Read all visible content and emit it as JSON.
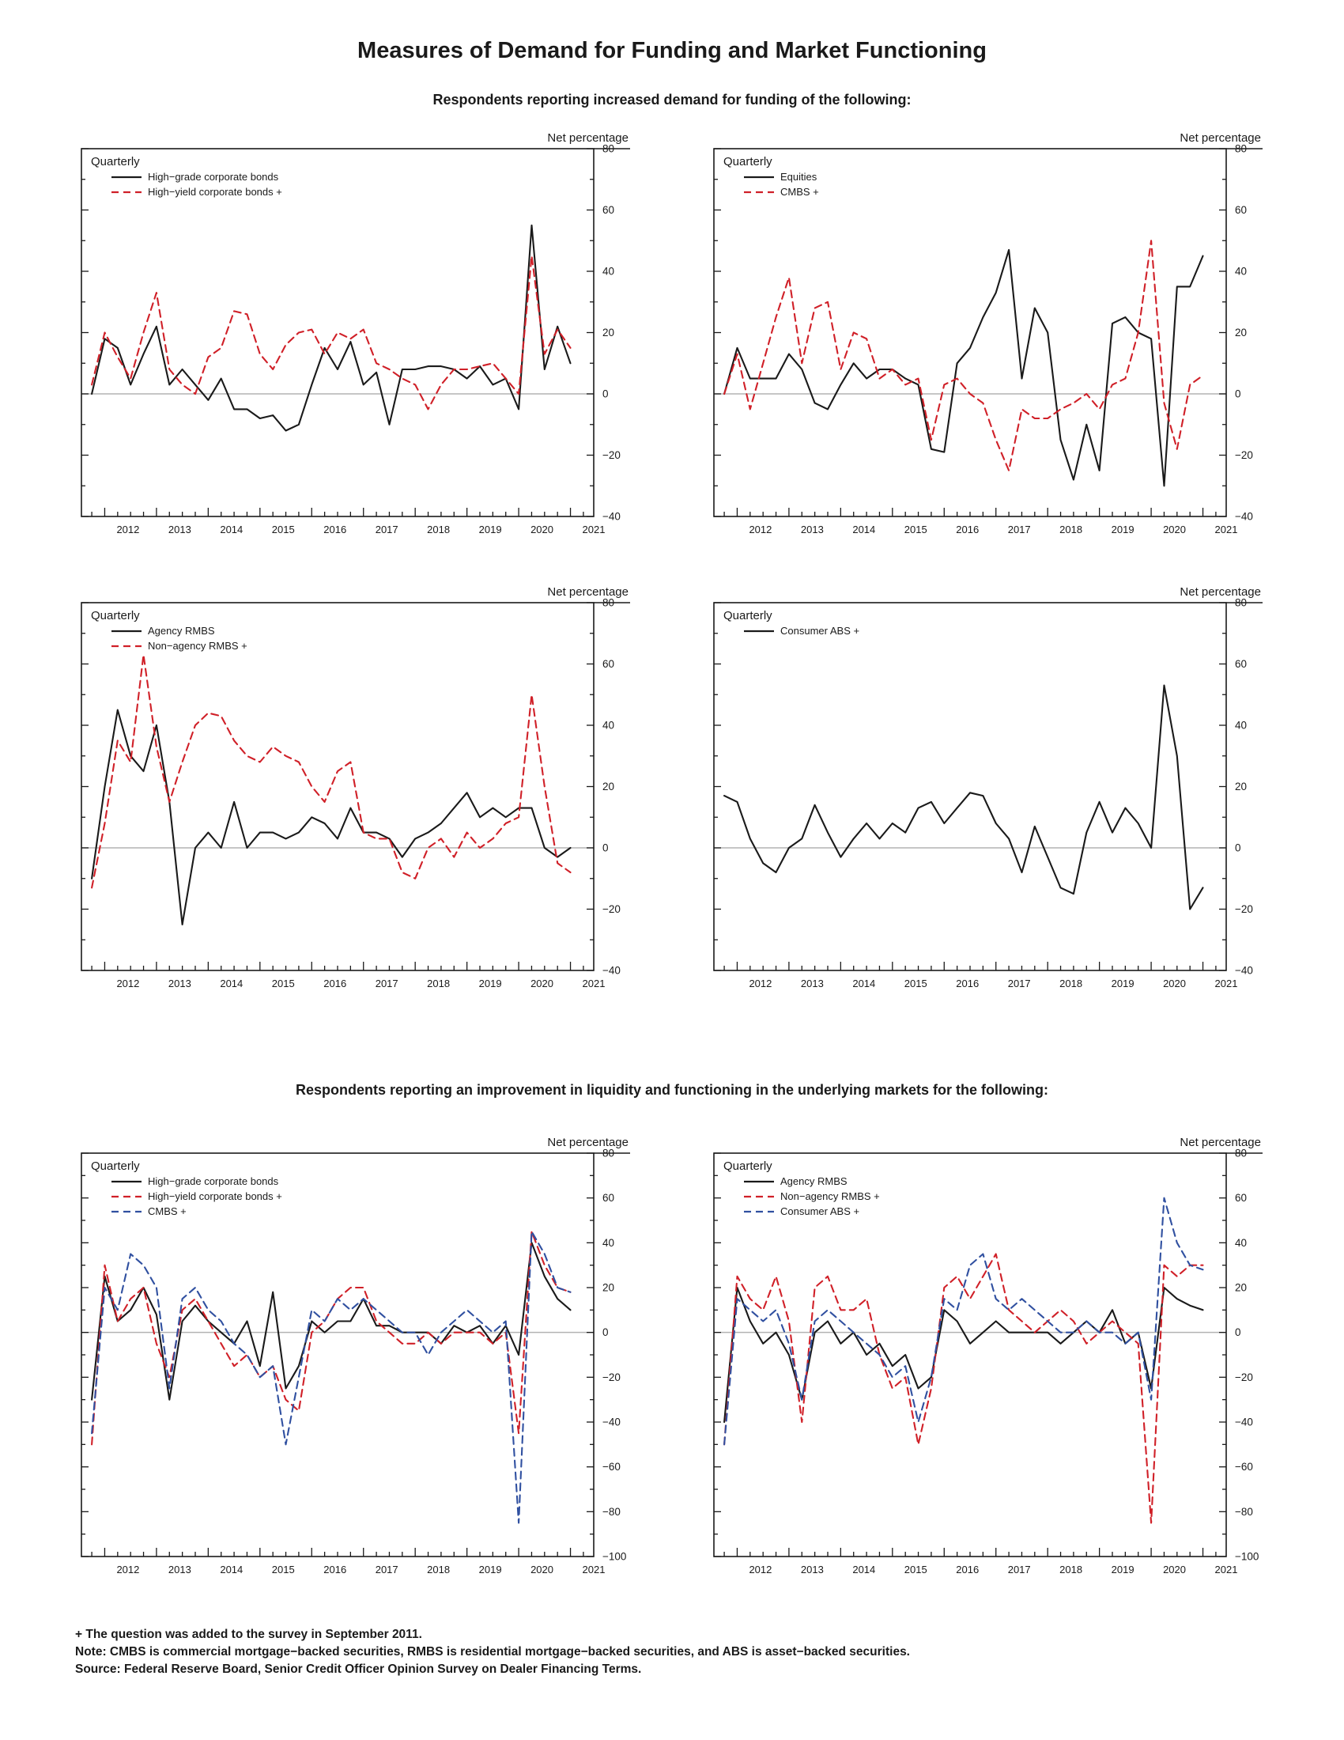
{
  "page": {
    "title": "Measures of Demand for Funding and Market Functioning",
    "section1_heading": "Respondents reporting increased demand for funding of the following:",
    "section2_heading": "Respondents reporting an improvement in liquidity and functioning in the underlying markets for the following:",
    "footnotes": [
      "+ The question was added to the survey in September 2011.",
      "Note: CMBS is commercial mortgage−backed securities, RMBS is residential mortgage−backed securities, and ABS is asset−backed securities.",
      "Source:  Federal Reserve Board, Senior Credit Officer Opinion Survey on Dealer Financing Terms."
    ],
    "colors": {
      "black": "#1a1a1a",
      "red": "#d02028",
      "blue": "#3050a0",
      "zero_line": "#b3b3b3"
    }
  },
  "chart_data": [
    {
      "type": "line",
      "corner_label": "Quarterly",
      "axis_label": "Net percentage",
      "ylim": [
        -40,
        80
      ],
      "ytick_step": 20,
      "ytick_minor": 10,
      "xlim": [
        2011.55,
        2021.45
      ],
      "x_start": 2011.75,
      "x_step": 0.25,
      "x_years": [
        2012,
        2013,
        2014,
        2015,
        2016,
        2017,
        2018,
        2019,
        2020,
        2021
      ],
      "series": [
        {
          "name": "High−grade corporate bonds",
          "color": "#1a1a1a",
          "style": "solid",
          "values": [
            0,
            18,
            15,
            3,
            13,
            22,
            3,
            8,
            3,
            -2,
            5,
            -5,
            -5,
            -8,
            -7,
            -12,
            -10,
            3,
            15,
            8,
            17,
            3,
            7,
            -10,
            8,
            8,
            9,
            9,
            8,
            5,
            9,
            3,
            5,
            -5,
            55,
            8,
            22,
            10
          ]
        },
        {
          "name": "High−yield corporate bonds +",
          "color": "#d02028",
          "style": "dashed",
          "values": [
            3,
            20,
            12,
            5,
            20,
            33,
            8,
            3,
            0,
            12,
            15,
            27,
            26,
            13,
            8,
            16,
            20,
            21,
            13,
            20,
            18,
            21,
            10,
            8,
            5,
            3,
            -5,
            3,
            8,
            8,
            9,
            10,
            5,
            0,
            45,
            13,
            21,
            15
          ]
        }
      ]
    },
    {
      "type": "line",
      "corner_label": "Quarterly",
      "axis_label": "Net percentage",
      "ylim": [
        -40,
        80
      ],
      "ytick_step": 20,
      "ytick_minor": 10,
      "xlim": [
        2011.55,
        2021.45
      ],
      "x_start": 2011.75,
      "x_step": 0.25,
      "x_years": [
        2012,
        2013,
        2014,
        2015,
        2016,
        2017,
        2018,
        2019,
        2020,
        2021
      ],
      "series": [
        {
          "name": "Equities",
          "color": "#1a1a1a",
          "style": "solid",
          "values": [
            0,
            15,
            5,
            5,
            5,
            13,
            8,
            -3,
            -5,
            3,
            10,
            5,
            8,
            8,
            5,
            3,
            -18,
            -19,
            10,
            15,
            25,
            33,
            47,
            5,
            28,
            20,
            -15,
            -28,
            -10,
            -25,
            23,
            25,
            20,
            18,
            -30,
            35,
            35,
            45
          ]
        },
        {
          "name": "CMBS +",
          "color": "#d02028",
          "style": "dashed",
          "values": [
            0,
            13,
            -5,
            10,
            25,
            38,
            10,
            28,
            30,
            8,
            20,
            18,
            5,
            8,
            3,
            5,
            -15,
            3,
            5,
            0,
            -3,
            -15,
            -25,
            -5,
            -8,
            -8,
            -5,
            -3,
            0,
            -5,
            3,
            5,
            20,
            50,
            -3,
            -18,
            3,
            6
          ]
        }
      ]
    },
    {
      "type": "line",
      "corner_label": "Quarterly",
      "axis_label": "Net percentage",
      "ylim": [
        -40,
        80
      ],
      "ytick_step": 20,
      "ytick_minor": 10,
      "xlim": [
        2011.55,
        2021.45
      ],
      "x_start": 2011.75,
      "x_step": 0.25,
      "x_years": [
        2012,
        2013,
        2014,
        2015,
        2016,
        2017,
        2018,
        2019,
        2020,
        2021
      ],
      "series": [
        {
          "name": "Agency RMBS",
          "color": "#1a1a1a",
          "style": "solid",
          "values": [
            -10,
            20,
            45,
            30,
            25,
            40,
            15,
            -25,
            0,
            5,
            0,
            15,
            0,
            5,
            5,
            3,
            5,
            10,
            8,
            3,
            13,
            5,
            5,
            3,
            -3,
            3,
            5,
            8,
            13,
            18,
            10,
            13,
            10,
            13,
            13,
            0,
            -3,
            0
          ]
        },
        {
          "name": "Non−agency RMBS +",
          "color": "#d02028",
          "style": "dashed",
          "values": [
            -13,
            8,
            35,
            28,
            63,
            33,
            15,
            28,
            40,
            44,
            43,
            35,
            30,
            28,
            33,
            30,
            28,
            20,
            15,
            25,
            28,
            5,
            3,
            3,
            -8,
            -10,
            0,
            3,
            -3,
            5,
            0,
            3,
            8,
            10,
            50,
            20,
            -5,
            -8
          ]
        }
      ]
    },
    {
      "type": "line",
      "corner_label": "Quarterly",
      "axis_label": "Net percentage",
      "ylim": [
        -40,
        80
      ],
      "ytick_step": 20,
      "ytick_minor": 10,
      "xlim": [
        2011.55,
        2021.45
      ],
      "x_start": 2011.75,
      "x_step": 0.25,
      "x_years": [
        2012,
        2013,
        2014,
        2015,
        2016,
        2017,
        2018,
        2019,
        2020,
        2021
      ],
      "series": [
        {
          "name": "Consumer ABS +",
          "color": "#1a1a1a",
          "style": "solid",
          "values": [
            17,
            15,
            3,
            -5,
            -8,
            0,
            3,
            14,
            5,
            -3,
            3,
            8,
            3,
            8,
            5,
            13,
            15,
            8,
            13,
            18,
            17,
            8,
            3,
            -8,
            7,
            -3,
            -13,
            -15,
            5,
            15,
            5,
            13,
            8,
            0,
            53,
            30,
            -20,
            -13
          ]
        }
      ]
    },
    {
      "type": "line",
      "corner_label": "Quarterly",
      "axis_label": "Net percentage",
      "ylim": [
        -100,
        80
      ],
      "ytick_step": 20,
      "ytick_minor": 10,
      "xlim": [
        2011.55,
        2021.45
      ],
      "x_start": 2011.75,
      "x_step": 0.25,
      "x_years": [
        2012,
        2013,
        2014,
        2015,
        2016,
        2017,
        2018,
        2019,
        2020,
        2021
      ],
      "series": [
        {
          "name": "High−grade corporate bonds",
          "color": "#1a1a1a",
          "style": "solid",
          "values": [
            -30,
            25,
            5,
            10,
            20,
            8,
            -30,
            5,
            12,
            5,
            0,
            -5,
            5,
            -15,
            18,
            -25,
            -15,
            5,
            0,
            5,
            5,
            15,
            3,
            3,
            0,
            0,
            0,
            -5,
            3,
            0,
            3,
            -5,
            3,
            -10,
            40,
            25,
            15,
            10
          ]
        },
        {
          "name": "High−yield corporate bonds +",
          "color": "#d02028",
          "style": "dashed",
          "values": [
            -50,
            30,
            5,
            15,
            20,
            -5,
            -20,
            10,
            15,
            5,
            -5,
            -15,
            -10,
            -20,
            -15,
            -30,
            -35,
            0,
            5,
            15,
            20,
            20,
            5,
            0,
            -5,
            -5,
            0,
            -5,
            0,
            0,
            0,
            -5,
            0,
            -45,
            45,
            30,
            20,
            18
          ]
        },
        {
          "name": "CMBS +",
          "color": "#3050a0",
          "style": "dashed",
          "values": [
            -45,
            20,
            10,
            35,
            30,
            20,
            -25,
            15,
            20,
            10,
            5,
            -5,
            -10,
            -20,
            -15,
            -50,
            -20,
            10,
            5,
            15,
            10,
            15,
            10,
            5,
            0,
            0,
            -10,
            0,
            5,
            10,
            5,
            0,
            5,
            -85,
            45,
            35,
            20,
            18
          ]
        }
      ]
    },
    {
      "type": "line",
      "corner_label": "Quarterly",
      "axis_label": "Net percentage",
      "ylim": [
        -100,
        80
      ],
      "ytick_step": 20,
      "ytick_minor": 10,
      "xlim": [
        2011.55,
        2021.45
      ],
      "x_start": 2011.75,
      "x_step": 0.25,
      "x_years": [
        2012,
        2013,
        2014,
        2015,
        2016,
        2017,
        2018,
        2019,
        2020,
        2021
      ],
      "series": [
        {
          "name": "Agency RMBS",
          "color": "#1a1a1a",
          "style": "solid",
          "values": [
            -40,
            20,
            5,
            -5,
            0,
            -10,
            -30,
            0,
            5,
            -5,
            0,
            -10,
            -5,
            -15,
            -10,
            -25,
            -20,
            10,
            5,
            -5,
            0,
            5,
            0,
            0,
            0,
            0,
            -5,
            0,
            5,
            0,
            10,
            -5,
            0,
            -25,
            20,
            15,
            12,
            10
          ]
        },
        {
          "name": "Non−agency RMBS +",
          "color": "#d02028",
          "style": "dashed",
          "values": [
            -50,
            25,
            15,
            10,
            25,
            5,
            -40,
            20,
            25,
            10,
            10,
            15,
            -10,
            -25,
            -20,
            -50,
            -25,
            20,
            25,
            15,
            25,
            35,
            10,
            5,
            0,
            5,
            10,
            5,
            -5,
            0,
            5,
            0,
            -5,
            -85,
            30,
            25,
            30,
            30
          ]
        },
        {
          "name": "Consumer ABS +",
          "color": "#3050a0",
          "style": "dashed",
          "values": [
            -50,
            15,
            10,
            5,
            10,
            -5,
            -30,
            5,
            10,
            5,
            0,
            -5,
            -10,
            -20,
            -15,
            -40,
            -20,
            15,
            10,
            30,
            35,
            15,
            10,
            15,
            10,
            5,
            0,
            0,
            5,
            0,
            0,
            -5,
            0,
            -30,
            60,
            40,
            30,
            28
          ]
        }
      ]
    }
  ]
}
